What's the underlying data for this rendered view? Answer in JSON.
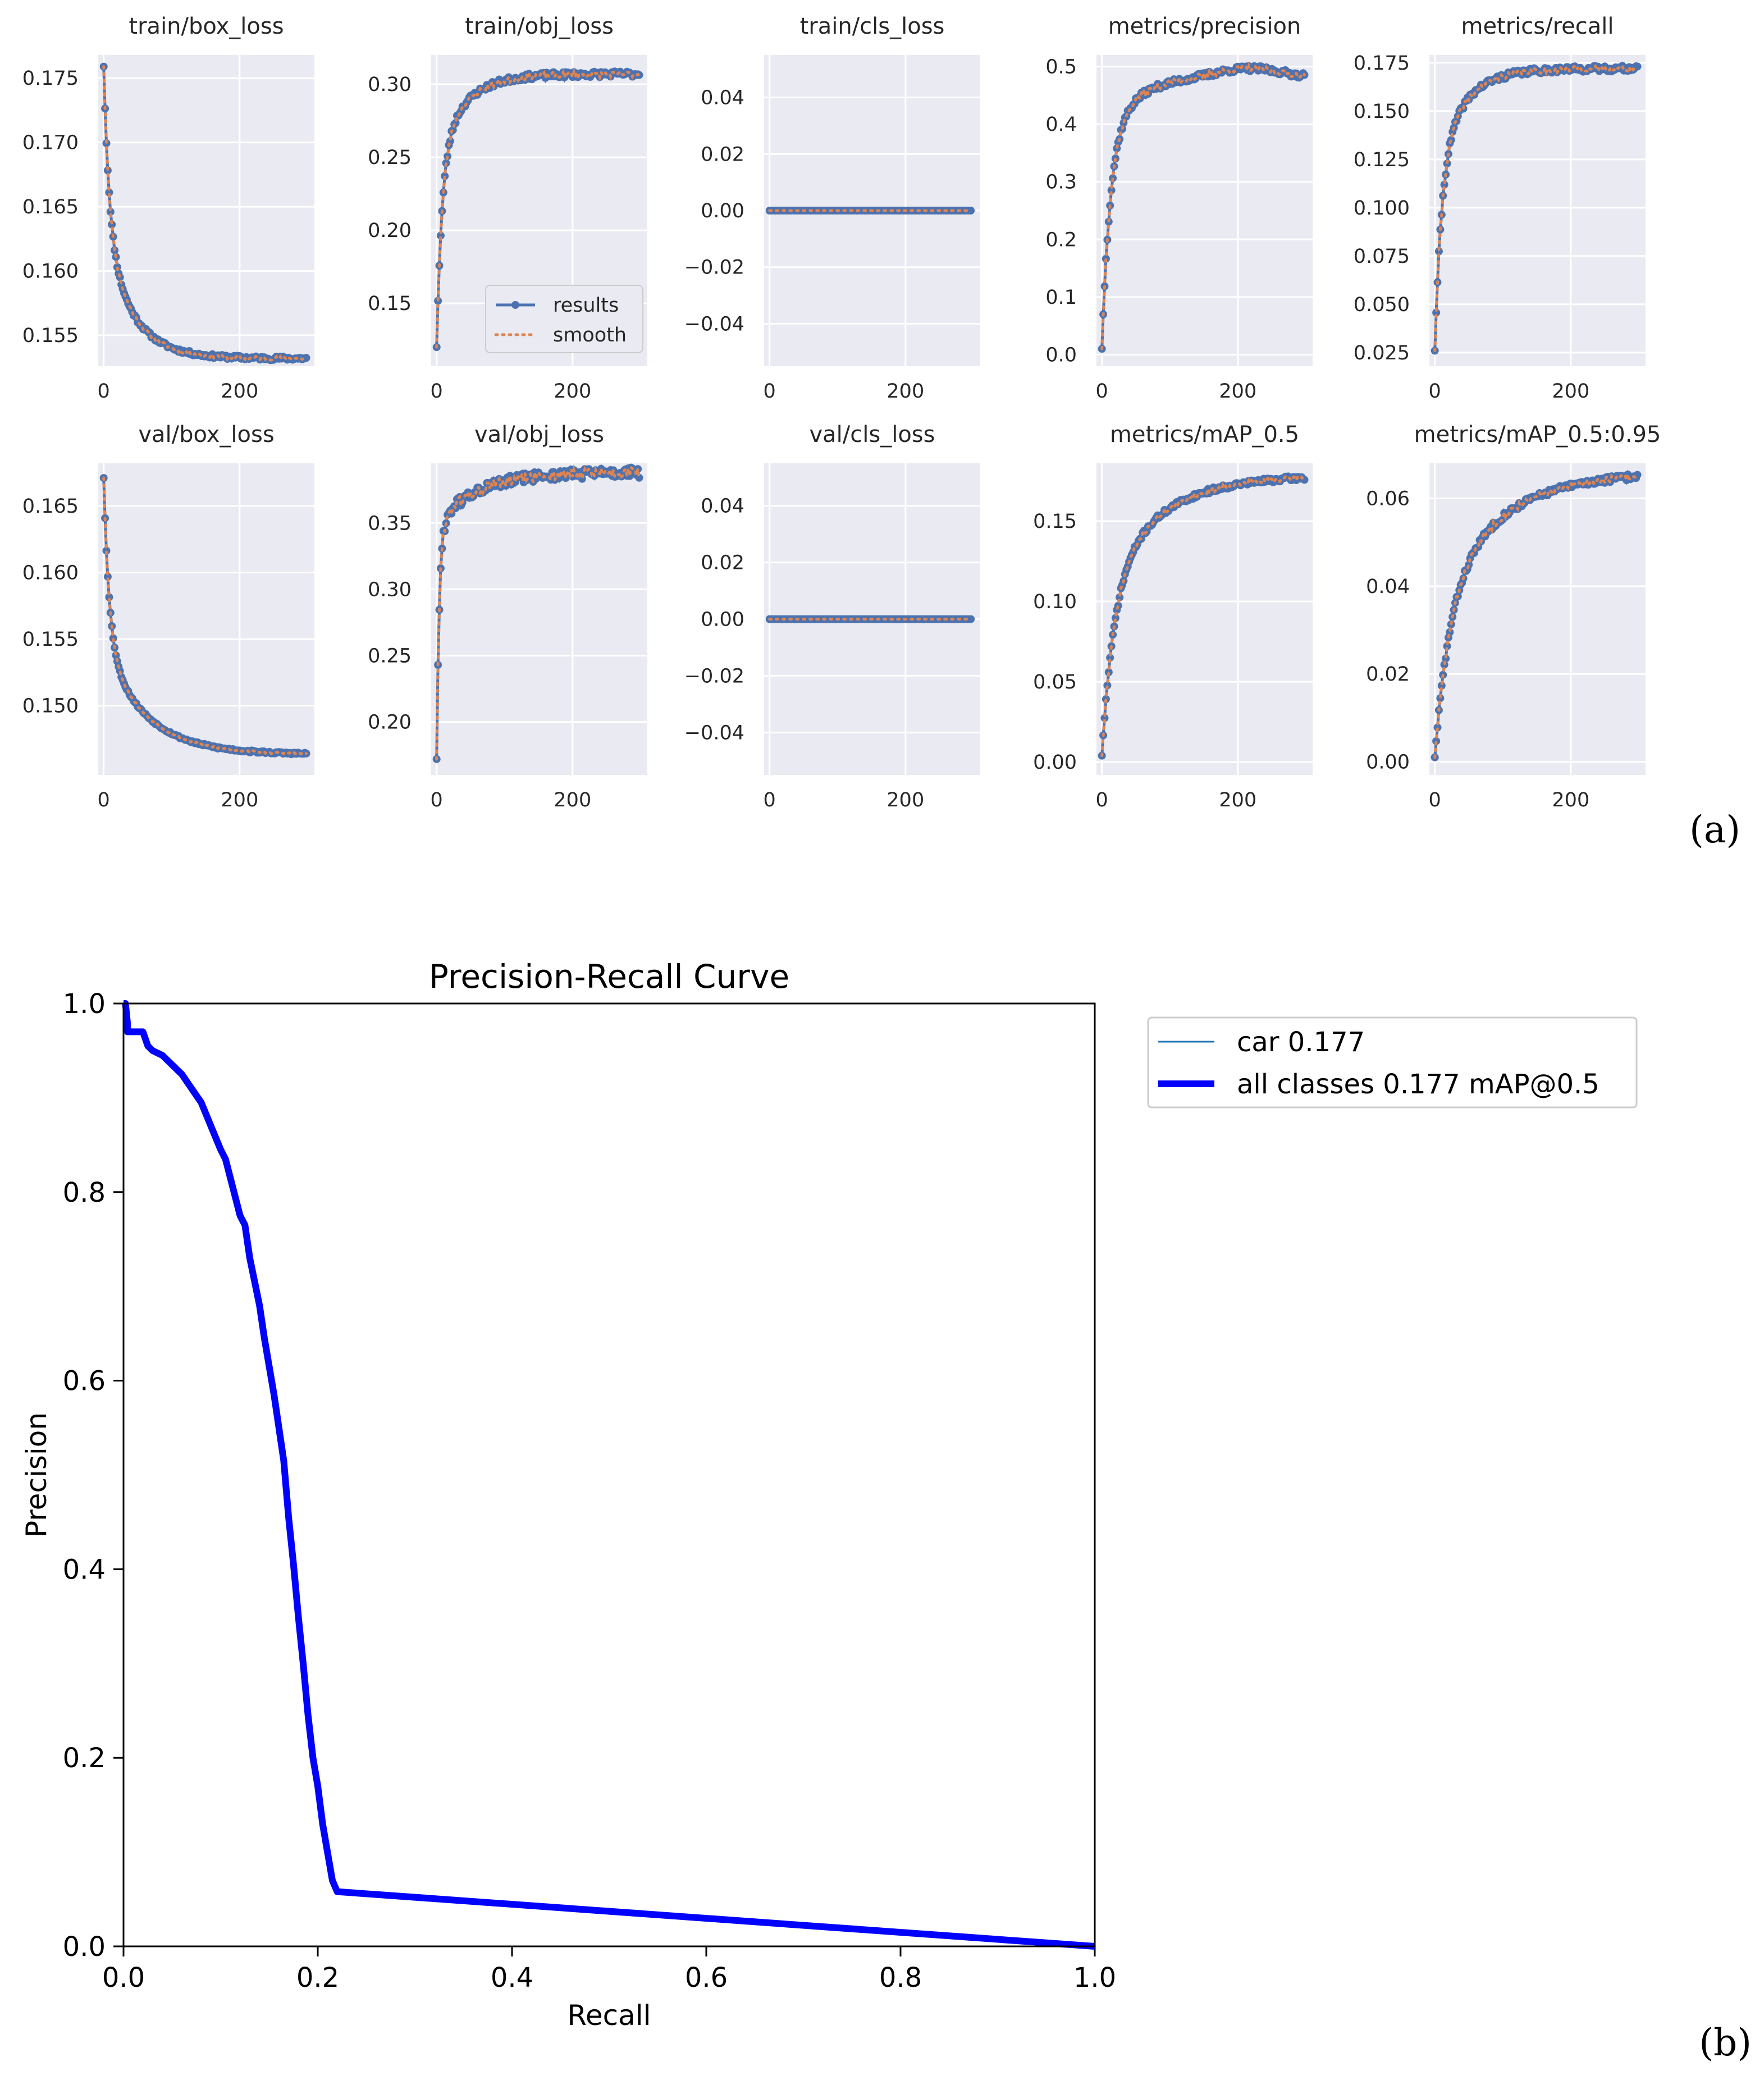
{
  "panel_labels": {
    "a": "(a)",
    "b": "(b)"
  },
  "chart_data": [
    {
      "id": "train_box_loss",
      "type": "line",
      "title": "train/box_loss",
      "xlim": [
        -8,
        310
      ],
      "ylim": [
        0.1526,
        0.1768
      ],
      "xticks": [
        0,
        200
      ],
      "xtick_labels": [
        "0",
        "200"
      ],
      "yticks": [
        0.155,
        0.16,
        0.165,
        0.17,
        0.175
      ],
      "ytick_labels": [
        "0.155",
        "0.160",
        "0.165",
        "0.170",
        "0.175"
      ],
      "curve": {
        "kind": "decay",
        "start": 0.1759,
        "end": 0.1532,
        "tau": 8,
        "slope_frac": 0.45,
        "x0": 0,
        "x1": 299,
        "noise": 0.00015,
        "seed": 11
      },
      "legend": null
    },
    {
      "id": "train_obj_loss",
      "type": "line",
      "title": "train/obj_loss",
      "xlim": [
        -8,
        310
      ],
      "ylim": [
        0.107,
        0.32
      ],
      "xticks": [
        0,
        200
      ],
      "xtick_labels": [
        "0",
        "200"
      ],
      "yticks": [
        0.15,
        0.2,
        0.25,
        0.3
      ],
      "ytick_labels": [
        "0.15",
        "0.20",
        "0.25",
        "0.30"
      ],
      "curve": {
        "kind": "rise",
        "start": 0.12,
        "end": 0.307,
        "tau": 8,
        "slope_frac": 0.3,
        "x0": 0,
        "x1": 299,
        "noise": 0.002,
        "seed": 23
      },
      "legend": {
        "entries": [
          "results",
          "smooth"
        ],
        "position": "lower-right"
      }
    },
    {
      "id": "train_cls_loss",
      "type": "line",
      "title": "train/cls_loss",
      "xlim": [
        -8,
        310
      ],
      "ylim": [
        -0.055,
        0.055
      ],
      "xticks": [
        0,
        200
      ],
      "xtick_labels": [
        "0",
        "200"
      ],
      "yticks": [
        -0.04,
        -0.02,
        0.0,
        0.02,
        0.04
      ],
      "ytick_labels": [
        "−0.04",
        "−0.02",
        "0.00",
        "0.02",
        "0.04"
      ],
      "curve": {
        "kind": "flat",
        "value": 0.0,
        "x0": 0,
        "x1": 299
      },
      "legend": null
    },
    {
      "id": "metrics_precision",
      "type": "line",
      "title": "metrics/precision",
      "xlim": [
        -8,
        310
      ],
      "ylim": [
        -0.02,
        0.52
      ],
      "xticks": [
        0,
        200
      ],
      "xtick_labels": [
        "0",
        "200"
      ],
      "yticks": [
        0.0,
        0.1,
        0.2,
        0.3,
        0.4,
        0.5
      ],
      "ytick_labels": [
        "0.0",
        "0.1",
        "0.2",
        "0.3",
        "0.4",
        "0.5"
      ],
      "curve": {
        "kind": "rise_peak",
        "start": 0.01,
        "end": 0.48,
        "peak": 0.497,
        "peak_x": 215,
        "tau": 12,
        "slope_frac": 0.25,
        "x0": 0,
        "x1": 299,
        "noise": 0.005,
        "seed": 37
      },
      "legend": null
    },
    {
      "id": "metrics_recall",
      "type": "line",
      "title": "metrics/recall",
      "xlim": [
        -8,
        310
      ],
      "ylim": [
        0.018,
        0.179
      ],
      "xticks": [
        0,
        200
      ],
      "xtick_labels": [
        "0",
        "200"
      ],
      "yticks": [
        0.025,
        0.05,
        0.075,
        0.1,
        0.125,
        0.15,
        0.175
      ],
      "ytick_labels": [
        "0.025",
        "0.050",
        "0.075",
        "0.100",
        "0.125",
        "0.150",
        "0.175"
      ],
      "curve": {
        "kind": "rise",
        "start": 0.026,
        "end": 0.172,
        "tau": 10,
        "slope_frac": 0.35,
        "x0": 0,
        "x1": 299,
        "noise": 0.0015,
        "seed": 41
      },
      "legend": null
    },
    {
      "id": "val_box_loss",
      "type": "line",
      "title": "val/box_loss",
      "xlim": [
        -8,
        310
      ],
      "ylim": [
        0.1448,
        0.1682
      ],
      "xticks": [
        0,
        200
      ],
      "xtick_labels": [
        "0",
        "200"
      ],
      "yticks": [
        0.15,
        0.155,
        0.16,
        0.165
      ],
      "ytick_labels": [
        "0.150",
        "0.155",
        "0.160",
        "0.165"
      ],
      "curve": {
        "kind": "decay",
        "start": 0.1671,
        "end": 0.1464,
        "tau": 8,
        "slope_frac": 0.4,
        "slope_tau": 60,
        "x0": 0,
        "x1": 299,
        "noise": 8e-05,
        "seed": 53
      },
      "legend": null
    },
    {
      "id": "val_obj_loss",
      "type": "line",
      "title": "val/obj_loss",
      "xlim": [
        -8,
        310
      ],
      "ylim": [
        0.16,
        0.395
      ],
      "xticks": [
        0,
        200
      ],
      "xtick_labels": [
        "0",
        "200"
      ],
      "yticks": [
        0.2,
        0.25,
        0.3,
        0.35
      ],
      "ytick_labels": [
        "0.20",
        "0.25",
        "0.30",
        "0.35"
      ],
      "curve": {
        "kind": "rise",
        "start": 0.172,
        "end": 0.388,
        "tau": 4,
        "slope_frac": 0.18,
        "slope_tau": 60,
        "x0": 0,
        "x1": 299,
        "noise": 0.004,
        "seed": 61
      },
      "legend": null
    },
    {
      "id": "val_cls_loss",
      "type": "line",
      "title": "val/cls_loss",
      "xlim": [
        -8,
        310
      ],
      "ylim": [
        -0.055,
        0.055
      ],
      "xticks": [
        0,
        200
      ],
      "xtick_labels": [
        "0",
        "200"
      ],
      "yticks": [
        -0.04,
        -0.02,
        0.0,
        0.02,
        0.04
      ],
      "ytick_labels": [
        "−0.04",
        "−0.02",
        "0.00",
        "0.02",
        "0.04"
      ],
      "curve": {
        "kind": "flat",
        "value": 0.0,
        "x0": 0,
        "x1": 299
      },
      "legend": null
    },
    {
      "id": "metrics_map_05",
      "type": "line",
      "title": "metrics/mAP_0.5",
      "xlim": [
        -8,
        310
      ],
      "ylim": [
        -0.008,
        0.186
      ],
      "xticks": [
        0,
        200
      ],
      "xtick_labels": [
        "0",
        "200"
      ],
      "yticks": [
        0.0,
        0.05,
        0.1,
        0.15
      ],
      "ytick_labels": [
        "0.00",
        "0.05",
        "0.10",
        "0.15"
      ],
      "curve": {
        "kind": "rise",
        "start": 0.004,
        "end": 0.177,
        "tau": 18,
        "slope_frac": 0.4,
        "slope_tau": 80,
        "x0": 0,
        "x1": 299,
        "noise": 0.0015,
        "seed": 71
      },
      "legend": null
    },
    {
      "id": "metrics_map_05_095",
      "type": "line",
      "title": "metrics/mAP_0.5:0.95",
      "xlim": [
        -8,
        310
      ],
      "ylim": [
        -0.003,
        0.068
      ],
      "xticks": [
        0,
        200
      ],
      "xtick_labels": [
        "0",
        "200"
      ],
      "yticks": [
        0.0,
        0.02,
        0.04,
        0.06
      ],
      "ytick_labels": [
        "0.00",
        "0.02",
        "0.04",
        "0.06"
      ],
      "curve": {
        "kind": "rise",
        "start": 0.001,
        "end": 0.065,
        "tau": 22,
        "slope_frac": 0.45,
        "slope_tau": 90,
        "x0": 0,
        "x1": 299,
        "noise": 0.0007,
        "seed": 83
      },
      "legend": null
    },
    {
      "id": "pr_curve",
      "type": "line",
      "title": "Precision-Recall Curve",
      "xlabel": "Recall",
      "ylabel": "Precision",
      "xlim": [
        0,
        1
      ],
      "ylim": [
        0,
        1
      ],
      "xticks": [
        0,
        0.2,
        0.4,
        0.6,
        0.8,
        1.0
      ],
      "xtick_labels": [
        "0.0",
        "0.2",
        "0.4",
        "0.6",
        "0.8",
        "1.0"
      ],
      "yticks": [
        0,
        0.2,
        0.4,
        0.6,
        0.8,
        1.0
      ],
      "ytick_labels": [
        "0.0",
        "0.2",
        "0.4",
        "0.6",
        "0.8",
        "1.0"
      ],
      "legend": {
        "position": "outside-upper-right"
      },
      "series": [
        {
          "name": "car 0.177",
          "color": "#1f77b4",
          "x": [
            0.0,
            0.002,
            0.004,
            0.004,
            0.01,
            0.02,
            0.025,
            0.03,
            0.04,
            0.05,
            0.06,
            0.07,
            0.08,
            0.09,
            0.1,
            0.105,
            0.11,
            0.12,
            0.125,
            0.13,
            0.14,
            0.145,
            0.15,
            0.155,
            0.16,
            0.165,
            0.17,
            0.175,
            0.18,
            0.185,
            0.19,
            0.195,
            0.2,
            0.205,
            0.21,
            0.215,
            0.22,
            0.22,
            1.0
          ],
          "y": [
            1.0,
            1.0,
            0.98,
            0.97,
            0.97,
            0.97,
            0.955,
            0.95,
            0.945,
            0.935,
            0.925,
            0.91,
            0.895,
            0.87,
            0.845,
            0.835,
            0.815,
            0.775,
            0.765,
            0.73,
            0.68,
            0.645,
            0.615,
            0.585,
            0.55,
            0.515,
            0.455,
            0.405,
            0.35,
            0.3,
            0.245,
            0.2,
            0.17,
            0.13,
            0.1,
            0.07,
            0.058,
            0.058,
            0.0
          ]
        },
        {
          "name": "all classes 0.177 mAP@0.5",
          "color": "#0000ff",
          "x": [
            0.0,
            0.002,
            0.004,
            0.004,
            0.01,
            0.02,
            0.025,
            0.03,
            0.04,
            0.05,
            0.06,
            0.07,
            0.08,
            0.09,
            0.1,
            0.105,
            0.11,
            0.12,
            0.125,
            0.13,
            0.14,
            0.145,
            0.15,
            0.155,
            0.16,
            0.165,
            0.17,
            0.175,
            0.18,
            0.185,
            0.19,
            0.195,
            0.2,
            0.205,
            0.21,
            0.215,
            0.22,
            0.22,
            1.0
          ],
          "y": [
            1.0,
            1.0,
            0.98,
            0.97,
            0.97,
            0.97,
            0.955,
            0.95,
            0.945,
            0.935,
            0.925,
            0.91,
            0.895,
            0.87,
            0.845,
            0.835,
            0.815,
            0.775,
            0.765,
            0.73,
            0.68,
            0.645,
            0.615,
            0.585,
            0.55,
            0.515,
            0.455,
            0.405,
            0.35,
            0.3,
            0.245,
            0.2,
            0.17,
            0.13,
            0.1,
            0.07,
            0.058,
            0.058,
            0.0
          ]
        }
      ]
    }
  ],
  "colors": {
    "results": "#4c72b0",
    "smooth": "#dd8452",
    "axes_bg": "#eaeaf2",
    "grid": "#ffffff"
  }
}
